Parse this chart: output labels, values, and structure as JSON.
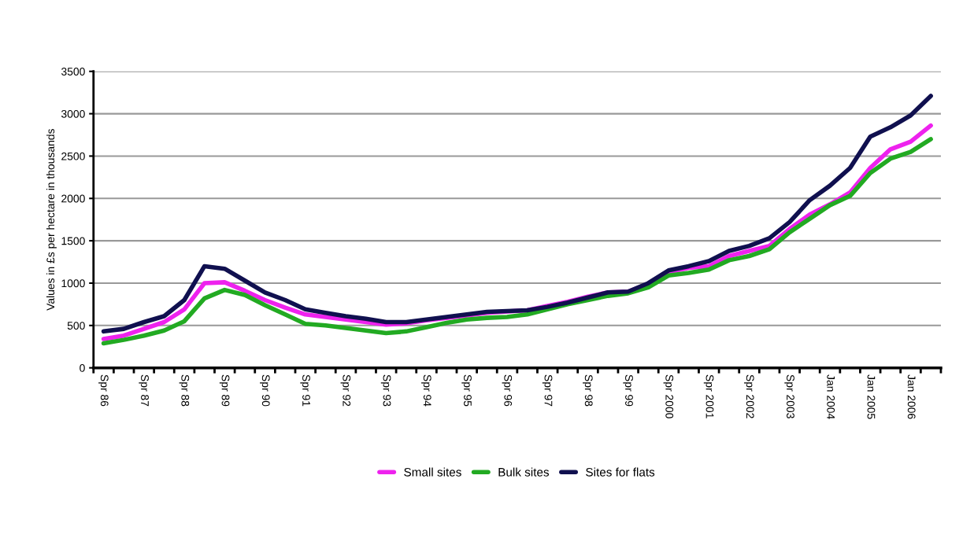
{
  "chart_data": {
    "type": "line",
    "ylabel": "Values in £s per hectare in thousands",
    "categories": [
      "Spr 86",
      null,
      "Spr 87",
      null,
      "Spr 88",
      null,
      "Spr 89",
      null,
      "Spr 90",
      null,
      "Spr 91",
      null,
      "Spr 92",
      null,
      "Spr 93",
      null,
      "Spr 94",
      null,
      "Spr 95",
      null,
      "Spr 96",
      null,
      "Spr 97",
      null,
      "Spr 98",
      null,
      "Spr 99",
      null,
      "Spr 2000",
      null,
      "Spr 2001",
      null,
      "Spr 2002",
      null,
      "Spr 2003",
      null,
      "Jan 2004",
      null,
      "Jan 2005",
      null,
      "Jan 2006",
      null
    ],
    "series": [
      {
        "name": "Small sites",
        "color": "#ee22ee",
        "values": [
          340,
          380,
          460,
          540,
          690,
          1000,
          1010,
          910,
          800,
          710,
          630,
          600,
          570,
          540,
          510,
          525,
          560,
          590,
          620,
          650,
          665,
          680,
          730,
          780,
          840,
          890,
          900,
          990,
          1130,
          1180,
          1200,
          1320,
          1380,
          1440,
          1640,
          1810,
          1930,
          2070,
          2360,
          2580,
          2670,
          2860
        ]
      },
      {
        "name": "Bulk sites",
        "color": "#22aa22",
        "values": [
          290,
          330,
          380,
          440,
          550,
          820,
          920,
          860,
          740,
          630,
          520,
          500,
          470,
          440,
          410,
          430,
          480,
          530,
          570,
          590,
          600,
          630,
          690,
          750,
          800,
          850,
          880,
          950,
          1090,
          1120,
          1160,
          1270,
          1320,
          1400,
          1600,
          1760,
          1920,
          2030,
          2300,
          2470,
          2550,
          2700
        ]
      },
      {
        "name": "Sites for flats",
        "color": "#10104f",
        "values": [
          430,
          460,
          540,
          610,
          800,
          1200,
          1170,
          1030,
          890,
          800,
          690,
          650,
          610,
          580,
          540,
          540,
          570,
          600,
          630,
          660,
          670,
          680,
          720,
          770,
          830,
          890,
          900,
          1000,
          1150,
          1200,
          1260,
          1380,
          1440,
          1530,
          1720,
          1980,
          2150,
          2360,
          2730,
          2840,
          2980,
          3210
        ]
      }
    ],
    "ylim": [
      0,
      3500
    ],
    "yticks": [
      0,
      500,
      1000,
      1500,
      2000,
      2500,
      3000,
      3500
    ],
    "grid": "y",
    "legend": "bottom",
    "marker": "none",
    "line_style": "solid"
  }
}
